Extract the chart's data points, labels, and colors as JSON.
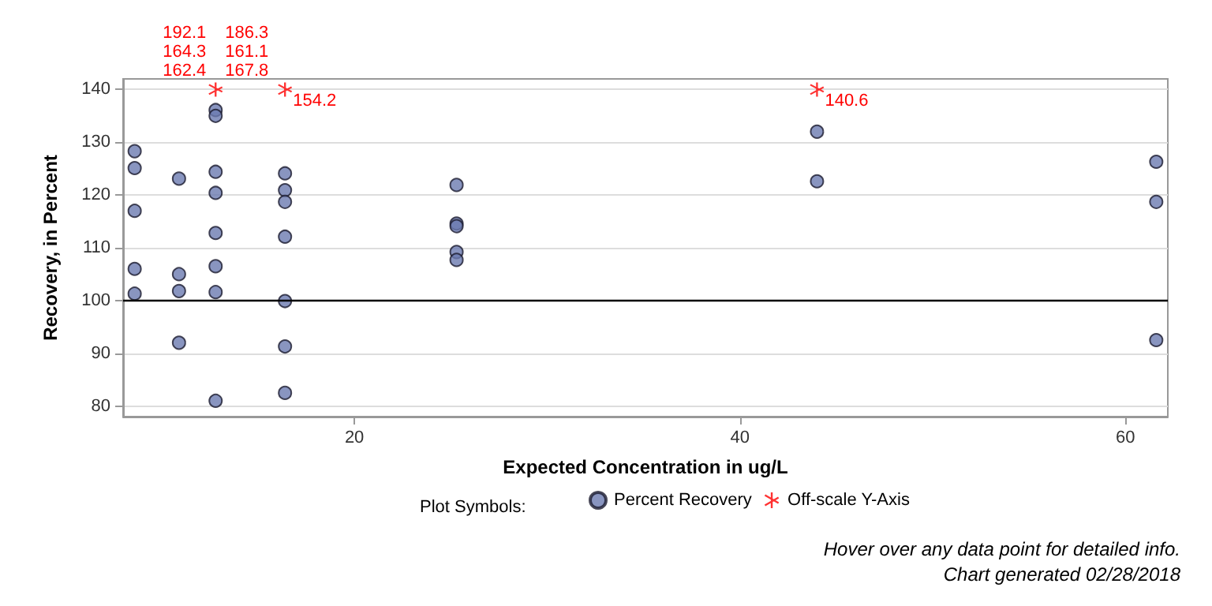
{
  "chart_data": {
    "type": "scatter",
    "xlabel": "Expected Concentration in ug/L",
    "ylabel": "Recovery, in Percent",
    "xlim": [
      8,
      62.2
    ],
    "xticks": [
      20,
      40,
      60
    ],
    "ylim": [
      78,
      142
    ],
    "yticks": [
      80,
      90,
      100,
      110,
      120,
      130,
      140
    ],
    "grid": "y",
    "legend": "bottom",
    "legend_title": "Plot Symbols:",
    "ref_lines": [
      {
        "axis": "y",
        "value": 100,
        "color": "#000000"
      }
    ],
    "annotations": [
      "Hover over any data point for detailed info.",
      "Chart generated 02/28/2018",
      {
        "text": "162.4",
        "x": 12.8,
        "y": 140
      },
      {
        "text": "167.8",
        "x": 12.8,
        "y": 140
      },
      {
        "text": "164.3",
        "x": 12.8,
        "y": 140
      },
      {
        "text": "161.1",
        "x": 12.8,
        "y": 140
      },
      {
        "text": "192.1",
        "x": 12.8,
        "y": 140
      },
      {
        "text": "186.3",
        "x": 12.8,
        "y": 140
      },
      {
        "text": "154.2",
        "x": 16.4,
        "y": 140
      },
      {
        "text": "140.6",
        "x": 44.0,
        "y": 140
      }
    ],
    "series": [
      {
        "name": "Percent Recovery",
        "color": "#6b7bb0",
        "marker": "circle",
        "x": [
          8.6,
          8.6,
          8.6,
          8.6,
          8.6,
          10.9,
          10.9,
          10.9,
          10.9,
          12.8,
          12.8,
          12.8,
          12.8,
          12.8,
          12.8,
          12.8,
          12.8,
          16.4,
          16.4,
          16.4,
          16.4,
          16.4,
          16.4,
          16.4,
          25.3,
          25.3,
          25.3,
          25.3,
          25.3,
          44.0,
          44.0,
          61.6,
          61.6,
          61.6
        ],
        "values": [
          128.3,
          125.1,
          117.0,
          106.0,
          101.3,
          123.1,
          105.0,
          101.8,
          92.0,
          136.1,
          135.0,
          124.4,
          120.4,
          112.8,
          106.5,
          101.6,
          81.0,
          124.1,
          120.9,
          118.7,
          112.1,
          99.9,
          91.3,
          82.5,
          121.9,
          114.6,
          114.1,
          109.2,
          107.7,
          132.0,
          122.6,
          126.3,
          118.7,
          92.5
        ]
      },
      {
        "name": "Off-scale Y-Axis",
        "color": "#ff0000",
        "marker": "cross",
        "x": [
          12.8,
          16.4,
          44.0
        ],
        "values": [
          140,
          140,
          140
        ]
      }
    ]
  }
}
